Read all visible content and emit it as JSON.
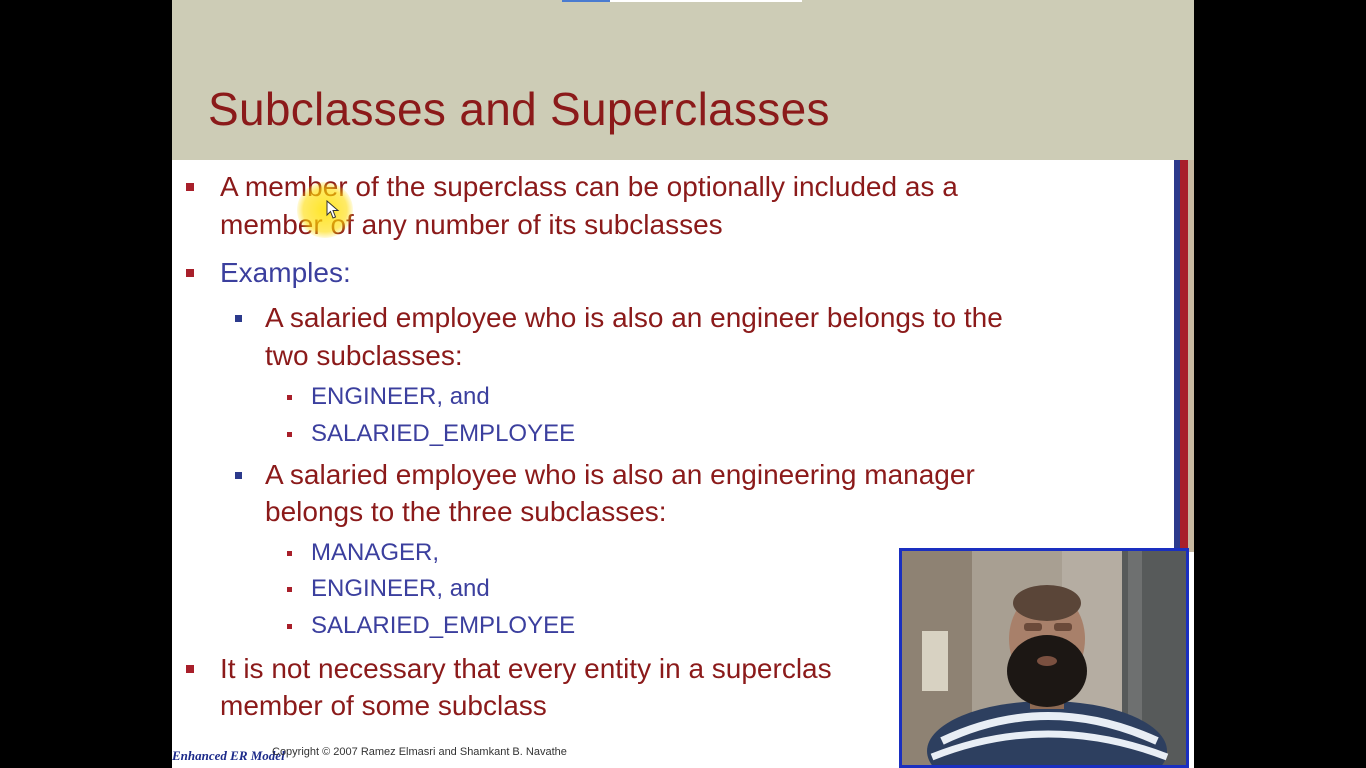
{
  "slide": {
    "title": "Subclasses and Superclasses",
    "bullets": {
      "b1": {
        "line1": "A member of the superclass can be optionally included as a",
        "line2": "member of any number of its subclasses"
      },
      "b2": {
        "label": "Examples:"
      },
      "b2_1": {
        "line1": "A salaried employee who is also an engineer belongs to the",
        "line2": "two subclasses:",
        "items": [
          "ENGINEER, and",
          "SALARIED_EMPLOYEE"
        ]
      },
      "b2_2": {
        "line1": "A salaried employee who is also an engineering manager",
        "line2": "belongs to the three subclasses:",
        "items": [
          "MANAGER,",
          "ENGINEER, and",
          "SALARIED_EMPLOYEE"
        ]
      },
      "b3": {
        "line1": "It is not necessary that every entity in a superclas",
        "line2": "member of some subclass"
      }
    },
    "footer": {
      "logo": "Enhanced ER Model",
      "copyright": "Copyright © 2007 Ramez Elmasri and Shamkant B. Navathe"
    }
  },
  "overlay": {
    "cursor_icon": "pointer-arrow-icon",
    "highlight_color": "#ffe100",
    "webcam_border_color": "#1a2fc0"
  }
}
